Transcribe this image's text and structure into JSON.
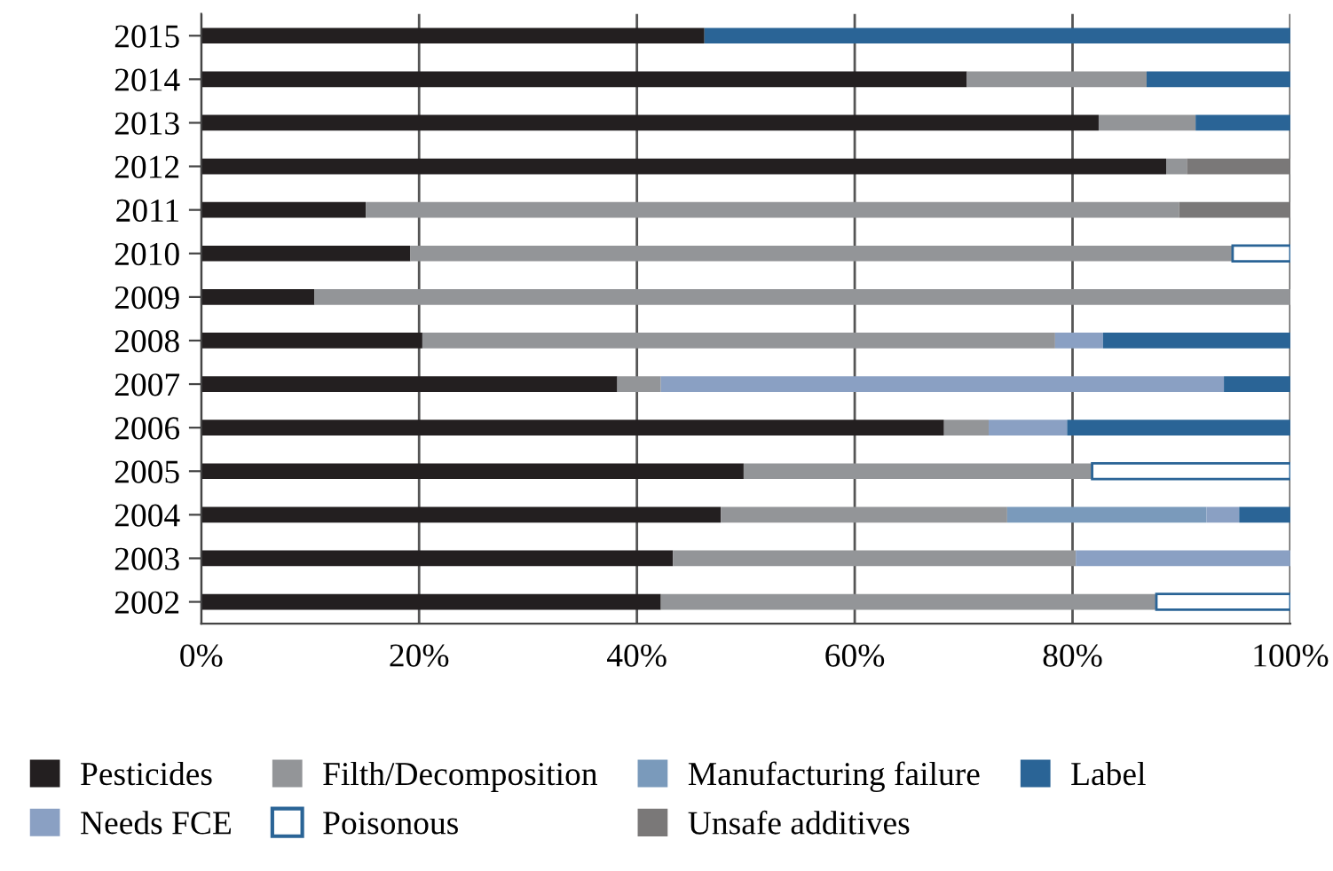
{
  "chart_data": {
    "type": "bar",
    "orientation": "horizontal",
    "stacked": true,
    "categories": [
      "2015",
      "2014",
      "2013",
      "2012",
      "2011",
      "2010",
      "2009",
      "2008",
      "2007",
      "2006",
      "2005",
      "2004",
      "2003",
      "2002"
    ],
    "series": [
      {
        "name": "Pesticides",
        "color": "#231f20",
        "values": [
          46.2,
          70.3,
          82.4,
          88.6,
          15.1,
          19.2,
          10.4,
          20.3,
          38.2,
          68.2,
          49.8,
          47.7,
          43.3,
          42.2
        ]
      },
      {
        "name": "Filth/Decomposition",
        "color": "#939598",
        "values": [
          null,
          16.5,
          8.9,
          1.9,
          74.7,
          75.5,
          89.6,
          58.1,
          4.0,
          4.1,
          32.0,
          26.3,
          37.0,
          45.5
        ]
      },
      {
        "name": "Manufacturing failure",
        "color": "#7a9abb",
        "values": [
          null,
          null,
          null,
          null,
          null,
          null,
          null,
          null,
          null,
          null,
          null,
          18.3,
          null,
          null
        ]
      },
      {
        "name": "Needs FCE",
        "color": "#8aa0c3",
        "values": [
          null,
          null,
          null,
          null,
          null,
          null,
          null,
          4.4,
          51.7,
          7.2,
          null,
          3.0,
          19.7,
          null
        ]
      },
      {
        "name": "Poisonous",
        "color": "#ffffff",
        "values": [
          null,
          null,
          null,
          null,
          null,
          5.3,
          null,
          null,
          null,
          null,
          18.2,
          null,
          null,
          12.3
        ]
      },
      {
        "name": "Unsafe additives",
        "color": "#7a7878",
        "values": [
          null,
          null,
          null,
          9.5,
          10.2,
          null,
          null,
          null,
          null,
          null,
          null,
          null,
          null,
          null
        ]
      },
      {
        "name": "Label",
        "color": "#2a6496",
        "values": [
          53.8,
          13.2,
          8.7,
          null,
          null,
          null,
          null,
          17.2,
          6.1,
          20.5,
          null,
          4.7,
          null,
          null
        ]
      }
    ],
    "xlim": [
      0,
      100
    ],
    "xticks": [
      {
        "value": 0,
        "label": "0%"
      },
      {
        "value": 20,
        "label": "20%"
      },
      {
        "value": 40,
        "label": "40%"
      },
      {
        "value": 60,
        "label": "60%"
      },
      {
        "value": 80,
        "label": "80%"
      },
      {
        "value": 100,
        "label": "100%"
      }
    ],
    "grid": "x",
    "legend": "bottom"
  }
}
